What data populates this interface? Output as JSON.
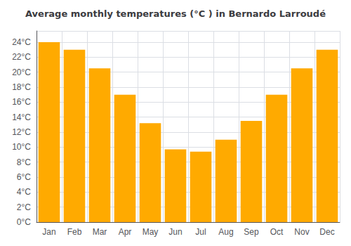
{
  "chart_data": {
    "type": "bar",
    "title": "Average monthly temperatures (°C ) in Bernardo Larroudé",
    "categories": [
      "Jan",
      "Feb",
      "Mar",
      "Apr",
      "May",
      "Jun",
      "Jul",
      "Aug",
      "Sep",
      "Oct",
      "Nov",
      "Dec"
    ],
    "values": [
      24.0,
      23.0,
      20.5,
      17.0,
      13.2,
      9.7,
      9.4,
      11.0,
      13.5,
      17.0,
      20.5,
      23.0
    ],
    "color": "#FFAA00",
    "ylim": [
      0,
      25.5
    ],
    "yticks": [
      {
        "value": 0,
        "label": "0°C"
      },
      {
        "value": 2,
        "label": "2°C"
      },
      {
        "value": 4,
        "label": "4°C"
      },
      {
        "value": 6,
        "label": "6°C"
      },
      {
        "value": 8,
        "label": "8°C"
      },
      {
        "value": 10,
        "label": "10°C"
      },
      {
        "value": 12,
        "label": "12°C"
      },
      {
        "value": 14,
        "label": "14°C"
      },
      {
        "value": 16,
        "label": "16°C"
      },
      {
        "value": 18,
        "label": "18°C"
      },
      {
        "value": 20,
        "label": "20°C"
      },
      {
        "value": 22,
        "label": "22°C"
      },
      {
        "value": 24,
        "label": "24°C"
      }
    ],
    "grid": true
  }
}
